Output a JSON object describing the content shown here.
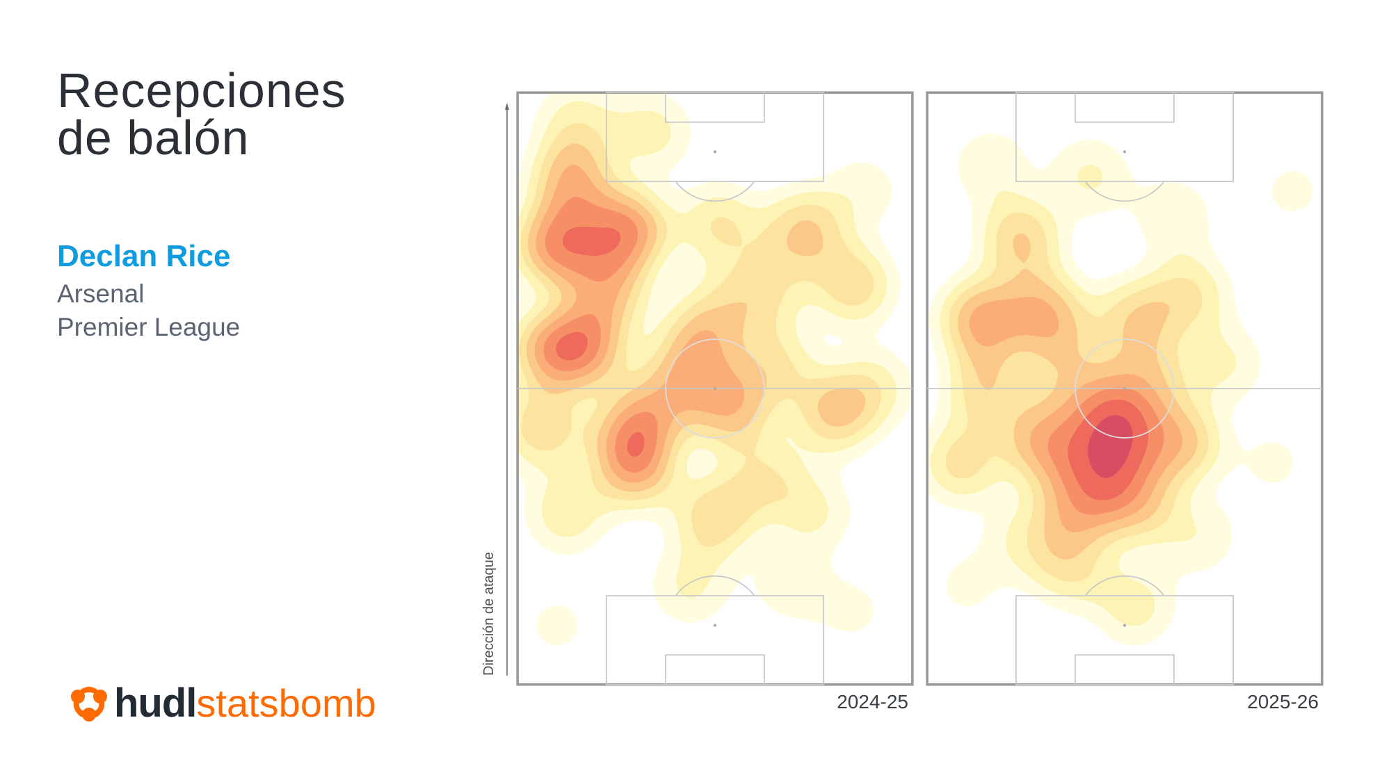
{
  "header": {
    "title_line1": "Recepciones",
    "title_line2": "de balón"
  },
  "player": {
    "name": "Declan Rice",
    "team": "Arsenal",
    "competition": "Premier League"
  },
  "logo": {
    "text_bold": "hudl",
    "text_light": "statsbomb",
    "colors": {
      "hudl": "#222a33",
      "statsbomb": "#ff6b00"
    }
  },
  "axis_label": "Dirección de ataque",
  "colors": {
    "name": "#0e9be0",
    "pitch_lines": "#c8c8c8",
    "colormap": "magma (white → yellow → orange → red → purple)"
  },
  "chart_data": [
    {
      "type": "heatmap",
      "label": "2024-25",
      "xlim": [
        0,
        80
      ],
      "ylim": [
        0,
        120
      ],
      "attack_direction": "up",
      "hotspots": [
        {
          "x": 8,
          "y": 31,
          "v": 1.0
        },
        {
          "x": 22,
          "y": 28,
          "v": 1.0
        },
        {
          "x": 11,
          "y": 18,
          "v": 0.8
        },
        {
          "x": 18,
          "y": 40,
          "v": 0.75
        },
        {
          "x": 7,
          "y": 52,
          "v": 0.85
        },
        {
          "x": 14,
          "y": 52,
          "v": 0.85
        },
        {
          "x": 5,
          "y": 68,
          "v": 0.6
        },
        {
          "x": 23,
          "y": 69,
          "v": 0.8
        },
        {
          "x": 24,
          "y": 76,
          "v": 0.8
        },
        {
          "x": 43,
          "y": 64,
          "v": 0.75
        },
        {
          "x": 36,
          "y": 53,
          "v": 0.7
        },
        {
          "x": 58,
          "y": 28,
          "v": 0.65
        },
        {
          "x": 68,
          "y": 39,
          "v": 0.6
        },
        {
          "x": 64,
          "y": 65,
          "v": 0.65
        },
        {
          "x": 40,
          "y": 86,
          "v": 0.6
        },
        {
          "x": 41,
          "y": 27,
          "v": 0.5
        },
        {
          "x": 27,
          "y": 8,
          "v": 0.4
        },
        {
          "x": 40,
          "y": 45,
          "v": 0.45
        },
        {
          "x": 52,
          "y": 55,
          "v": 0.5
        },
        {
          "x": 30,
          "y": 62,
          "v": 0.6
        },
        {
          "x": 50,
          "y": 78,
          "v": 0.45
        },
        {
          "x": 60,
          "y": 85,
          "v": 0.35
        },
        {
          "x": 35,
          "y": 100,
          "v": 0.35
        },
        {
          "x": 55,
          "y": 100,
          "v": 0.25
        },
        {
          "x": 10,
          "y": 85,
          "v": 0.45
        },
        {
          "x": 72,
          "y": 60,
          "v": 0.4
        },
        {
          "x": 12,
          "y": 6,
          "v": 0.4
        },
        {
          "x": 70,
          "y": 20,
          "v": 0.25
        },
        {
          "x": 8,
          "y": 108,
          "v": 0.2
        },
        {
          "x": 68,
          "y": 105,
          "v": 0.2
        },
        {
          "x": 50,
          "y": 40,
          "v": 0.5
        }
      ]
    },
    {
      "type": "heatmap",
      "label": "2025-26",
      "xlim": [
        0,
        80
      ],
      "ylim": [
        0,
        120
      ],
      "attack_direction": "up",
      "hotspots": [
        {
          "x": 11,
          "y": 46,
          "v": 0.85
        },
        {
          "x": 24,
          "y": 45,
          "v": 0.8
        },
        {
          "x": 19,
          "y": 30,
          "v": 0.65
        },
        {
          "x": 38,
          "y": 66,
          "v": 1.0
        },
        {
          "x": 37,
          "y": 74,
          "v": 0.95
        },
        {
          "x": 24,
          "y": 71,
          "v": 0.85
        },
        {
          "x": 51,
          "y": 71,
          "v": 0.75
        },
        {
          "x": 31,
          "y": 83,
          "v": 0.8
        },
        {
          "x": 42,
          "y": 83,
          "v": 0.7
        },
        {
          "x": 42,
          "y": 46,
          "v": 0.6
        },
        {
          "x": 53,
          "y": 41,
          "v": 0.5
        },
        {
          "x": 7,
          "y": 75,
          "v": 0.55
        },
        {
          "x": 29,
          "y": 96,
          "v": 0.5
        },
        {
          "x": 42,
          "y": 104,
          "v": 0.4
        },
        {
          "x": 33,
          "y": 17,
          "v": 0.35
        },
        {
          "x": 13,
          "y": 15,
          "v": 0.3
        },
        {
          "x": 29,
          "y": 57,
          "v": 0.55
        },
        {
          "x": 12,
          "y": 60,
          "v": 0.6
        },
        {
          "x": 45,
          "y": 58,
          "v": 0.55
        },
        {
          "x": 60,
          "y": 55,
          "v": 0.35
        },
        {
          "x": 20,
          "y": 90,
          "v": 0.35
        },
        {
          "x": 55,
          "y": 90,
          "v": 0.3
        },
        {
          "x": 70,
          "y": 75,
          "v": 0.2
        },
        {
          "x": 74,
          "y": 20,
          "v": 0.2
        },
        {
          "x": 8,
          "y": 100,
          "v": 0.2
        },
        {
          "x": 50,
          "y": 25,
          "v": 0.3
        }
      ]
    }
  ]
}
